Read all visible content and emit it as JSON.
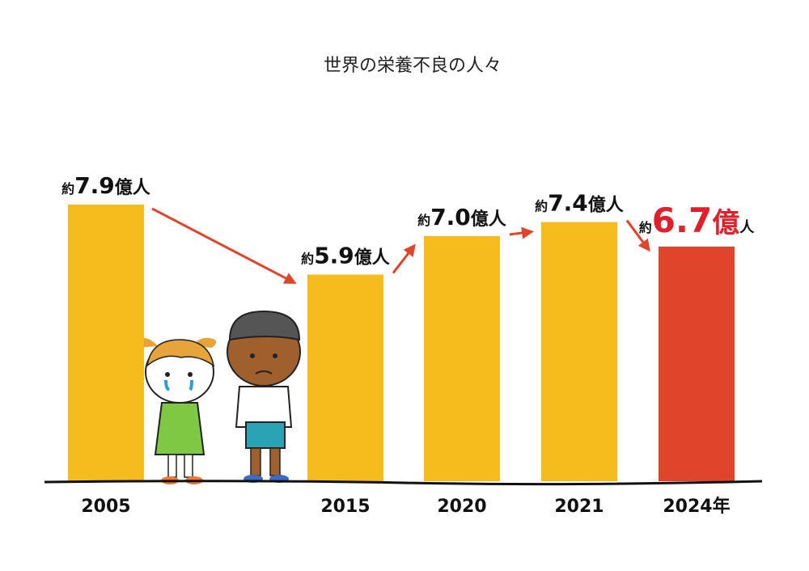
{
  "chart_data": {
    "type": "bar",
    "title": "世界の栄養不良の人々",
    "categories": [
      "2005",
      "2015",
      "2020",
      "2021",
      "2024年"
    ],
    "values": [
      7.9,
      5.9,
      7.0,
      7.4,
      6.7
    ],
    "value_labels": [
      "約7.9億人",
      "約5.9億人",
      "約7.0億人",
      "約7.4億人",
      "約6.7億人"
    ],
    "colors": [
      "#f6bc1e",
      "#f6bc1e",
      "#f6bc1e",
      "#f6bc1e",
      "#e0442b"
    ]
  }
}
